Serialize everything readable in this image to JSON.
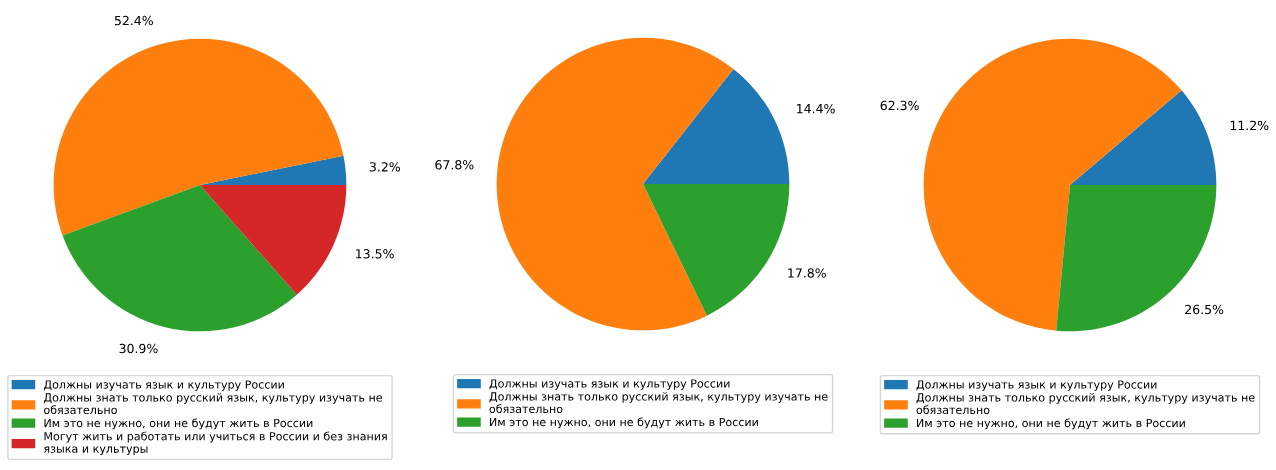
{
  "chart_data": [
    {
      "type": "pie",
      "categories": [
        "Должны изучать язык и культуру России",
        "Должны знать только русский язык, культуру изучать не\nобязательно",
        "Им это не нужно, они не будут жить в России",
        "Могут жить и работать или учиться в России и без знания\nязыка и культуры"
      ],
      "values": [
        3.2,
        52.4,
        30.9,
        13.5
      ],
      "value_labels": [
        "3.2%",
        "52.4%",
        "30.9%",
        "13.5%"
      ],
      "colors": [
        "#1f77b4",
        "#ff7f0e",
        "#2ca02c",
        "#d62728"
      ],
      "legend": "bottom"
    },
    {
      "type": "pie",
      "categories": [
        "Должны изучать язык и культуру России",
        "Должны знать только русский язык, культуру изучать не\nобязательно",
        "Им это не нужно, они не будут жить в России"
      ],
      "values": [
        14.4,
        67.8,
        17.8
      ],
      "value_labels": [
        "14.4%",
        "67.8%",
        "17.8%"
      ],
      "colors": [
        "#1f77b4",
        "#ff7f0e",
        "#2ca02c"
      ],
      "legend": "bottom"
    },
    {
      "type": "pie",
      "categories": [
        "Должны изучать язык и культуру России",
        "Должны знать только русский язык, культуру изучать не\nобязательно",
        "Им это не нужно, они не будут жить в России"
      ],
      "values": [
        11.2,
        62.3,
        26.5
      ],
      "value_labels": [
        "11.2%",
        "62.3%",
        "26.5%"
      ],
      "colors": [
        "#1f77b4",
        "#ff7f0e",
        "#2ca02c"
      ],
      "legend": "bottom"
    }
  ]
}
